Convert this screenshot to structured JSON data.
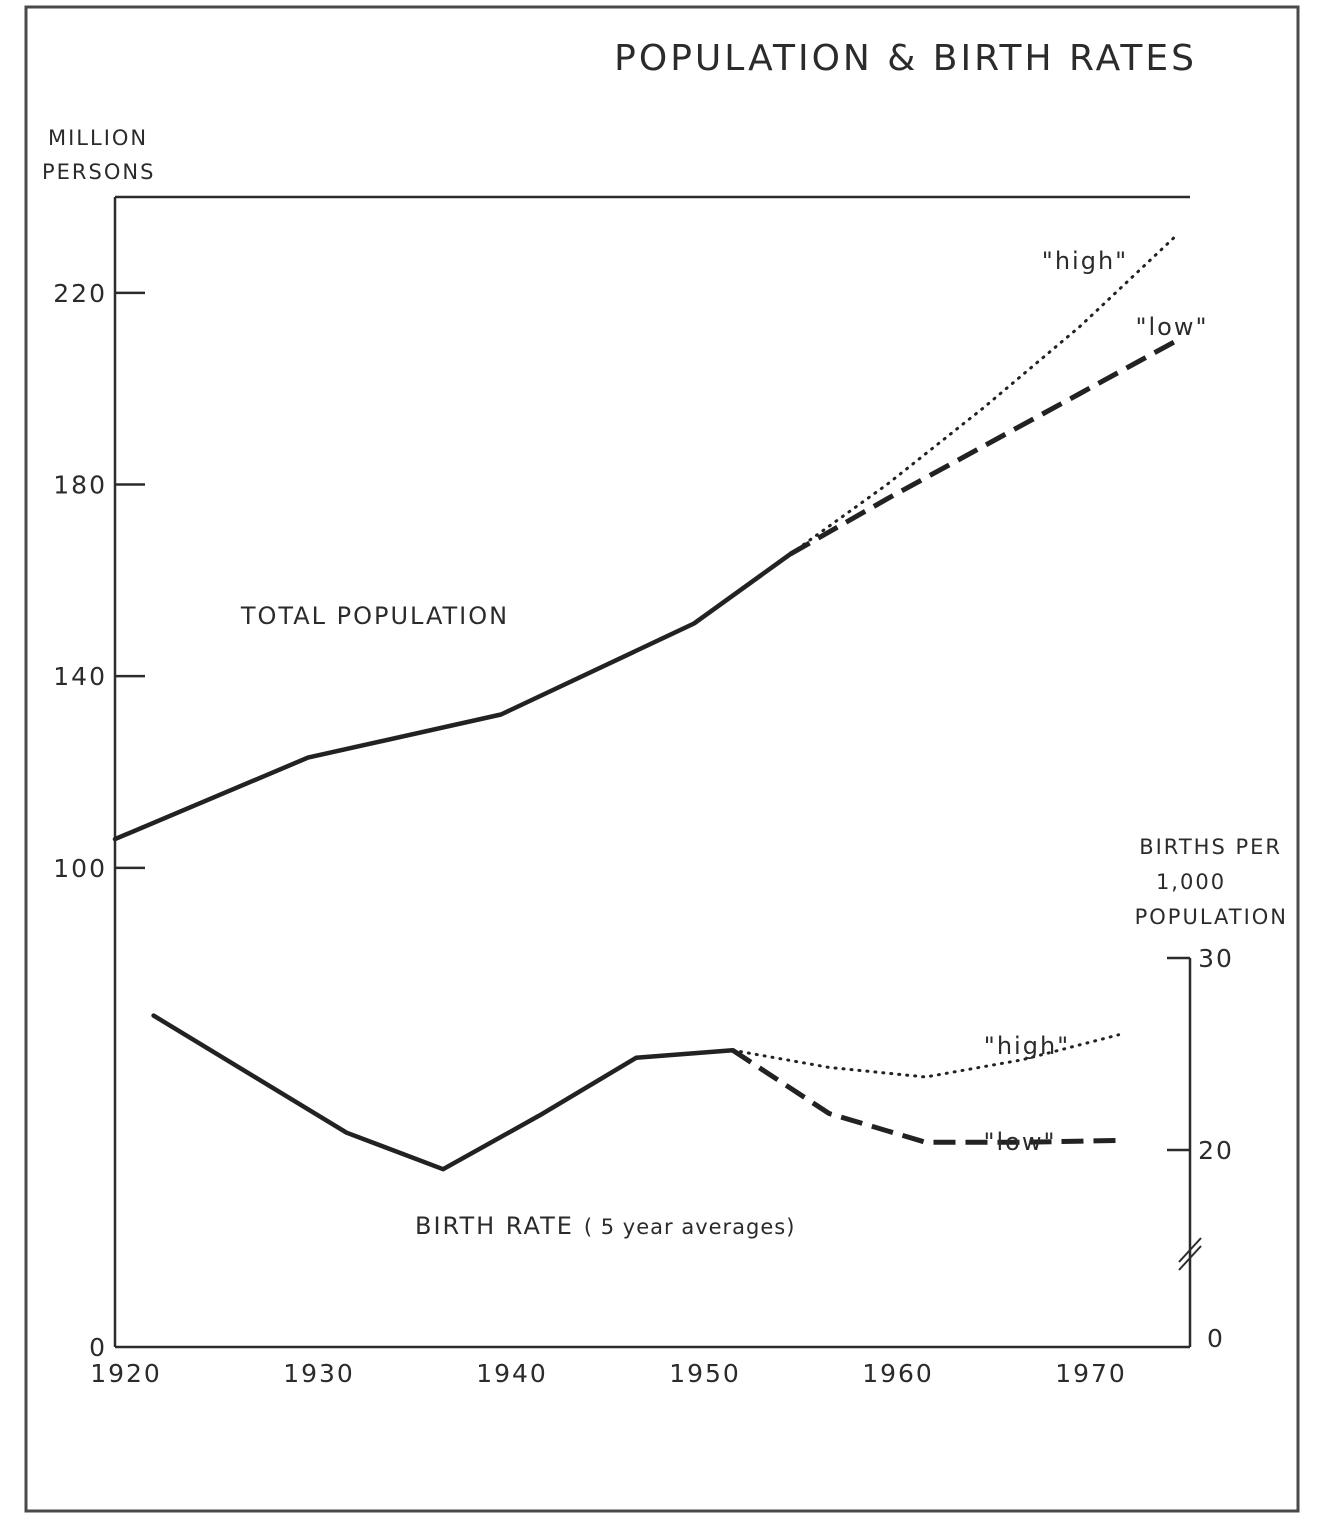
{
  "chart_data": {
    "type": "line",
    "title": "POPULATION & BIRTH RATES",
    "left_axis": {
      "unit_lines": [
        "MILLION",
        "PERSONS"
      ],
      "ylim": [
        0,
        240
      ],
      "ticks": [
        0,
        100,
        140,
        180,
        220
      ],
      "tick_labels": [
        "0",
        "100",
        "140",
        "180",
        "220"
      ]
    },
    "right_axis": {
      "unit_lines": [
        "BIRTHS PER",
        "1,000",
        "POPULATION"
      ],
      "ticks": [
        0,
        20,
        30
      ],
      "tick_labels": [
        "0",
        "20",
        "30"
      ],
      "axis_break": true
    },
    "x_axis": {
      "xlim": [
        1920,
        1975
      ],
      "ticks": [
        1920,
        1930,
        1940,
        1950,
        1960,
        1970
      ],
      "tick_labels": [
        "1920",
        "1930",
        "1940",
        "1950",
        "1960",
        "1970"
      ]
    },
    "population": {
      "label": "TOTAL POPULATION",
      "actual": {
        "x": [
          1920,
          1930,
          1940,
          1950,
          1955
        ],
        "y": [
          106,
          123,
          132,
          151,
          165.5
        ]
      },
      "projections": [
        {
          "name": "\"high\"",
          "style": "dotted",
          "x": [
            1955,
            1960,
            1965,
            1970,
            1975
          ],
          "y": [
            165.5,
            180,
            196,
            213,
            232
          ]
        },
        {
          "name": "\"low\"",
          "style": "dashed",
          "x": [
            1955,
            1960,
            1965,
            1970,
            1975
          ],
          "y": [
            165.5,
            177,
            188,
            199,
            210
          ]
        }
      ]
    },
    "birth_rate": {
      "label": "BIRTH RATE",
      "label_note": "( 5 year averages)",
      "actual": {
        "x": [
          1922,
          1932,
          1937,
          1942,
          1947,
          1952
        ],
        "y": [
          27.0,
          20.9,
          19.0,
          21.8,
          24.8,
          25.2
        ]
      },
      "projections": [
        {
          "name": "\"high\"",
          "style": "dotted",
          "x": [
            1952,
            1957,
            1962,
            1967,
            1972
          ],
          "y": [
            25.2,
            24.3,
            23.8,
            24.7,
            26.0
          ]
        },
        {
          "name": "\"low\"",
          "style": "dashed",
          "x": [
            1952,
            1957,
            1962,
            1967,
            1972
          ],
          "y": [
            25.2,
            21.9,
            20.4,
            20.4,
            20.5
          ]
        }
      ]
    }
  }
}
